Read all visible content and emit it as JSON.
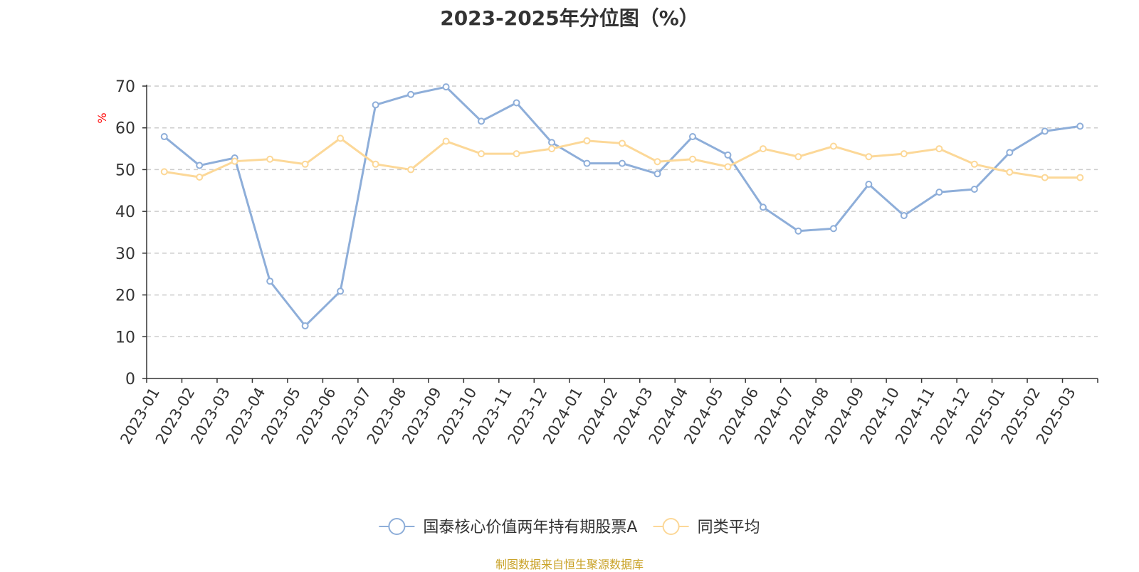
{
  "title": "2023-2025年分位图（%）",
  "source_note": "制图数据来自恒生聚源数据库",
  "colors": {
    "series_fund": "#8eaed9",
    "series_avg": "#fcd898",
    "grid": "#cccccc",
    "axis": "#333333",
    "ylabel": "#ff0000",
    "source": "#c9a227"
  },
  "chart_data": {
    "type": "line",
    "title": "2023-2025年分位图（%）",
    "xlabel": "",
    "ylabel": "%",
    "ylim": [
      0,
      70
    ],
    "yticks": [
      0,
      10,
      20,
      30,
      40,
      50,
      60,
      70
    ],
    "grid": true,
    "legend_position": "bottom",
    "categories": [
      "2023-01",
      "2023-02",
      "2023-03",
      "2023-04",
      "2023-05",
      "2023-06",
      "2023-07",
      "2023-08",
      "2023-09",
      "2023-10",
      "2023-11",
      "2023-12",
      "2024-01",
      "2024-02",
      "2024-03",
      "2024-04",
      "2024-05",
      "2024-06",
      "2024-07",
      "2024-08",
      "2024-09",
      "2024-10",
      "2024-11",
      "2024-12",
      "2025-01",
      "2025-02",
      "2025-03"
    ],
    "series": [
      {
        "name": "国泰核心价值两年持有期股票A",
        "color": "#8eaed9",
        "values": [
          57.9,
          51.0,
          52.8,
          23.3,
          12.6,
          20.9,
          65.5,
          68.0,
          69.8,
          61.6,
          66.0,
          56.5,
          51.5,
          51.5,
          49.0,
          57.9,
          53.5,
          41.0,
          35.3,
          35.9,
          46.5,
          39.0,
          44.6,
          45.3,
          54.1,
          59.2,
          60.4
        ]
      },
      {
        "name": "同类平均",
        "color": "#fcd898",
        "values": [
          49.5,
          48.2,
          52.0,
          52.5,
          51.3,
          57.5,
          51.3,
          50.0,
          56.8,
          53.8,
          53.8,
          55.0,
          56.9,
          56.3,
          51.9,
          52.5,
          50.7,
          55.0,
          53.1,
          55.6,
          53.1,
          53.8,
          55.0,
          51.3,
          49.4,
          48.1,
          48.1
        ]
      }
    ]
  }
}
